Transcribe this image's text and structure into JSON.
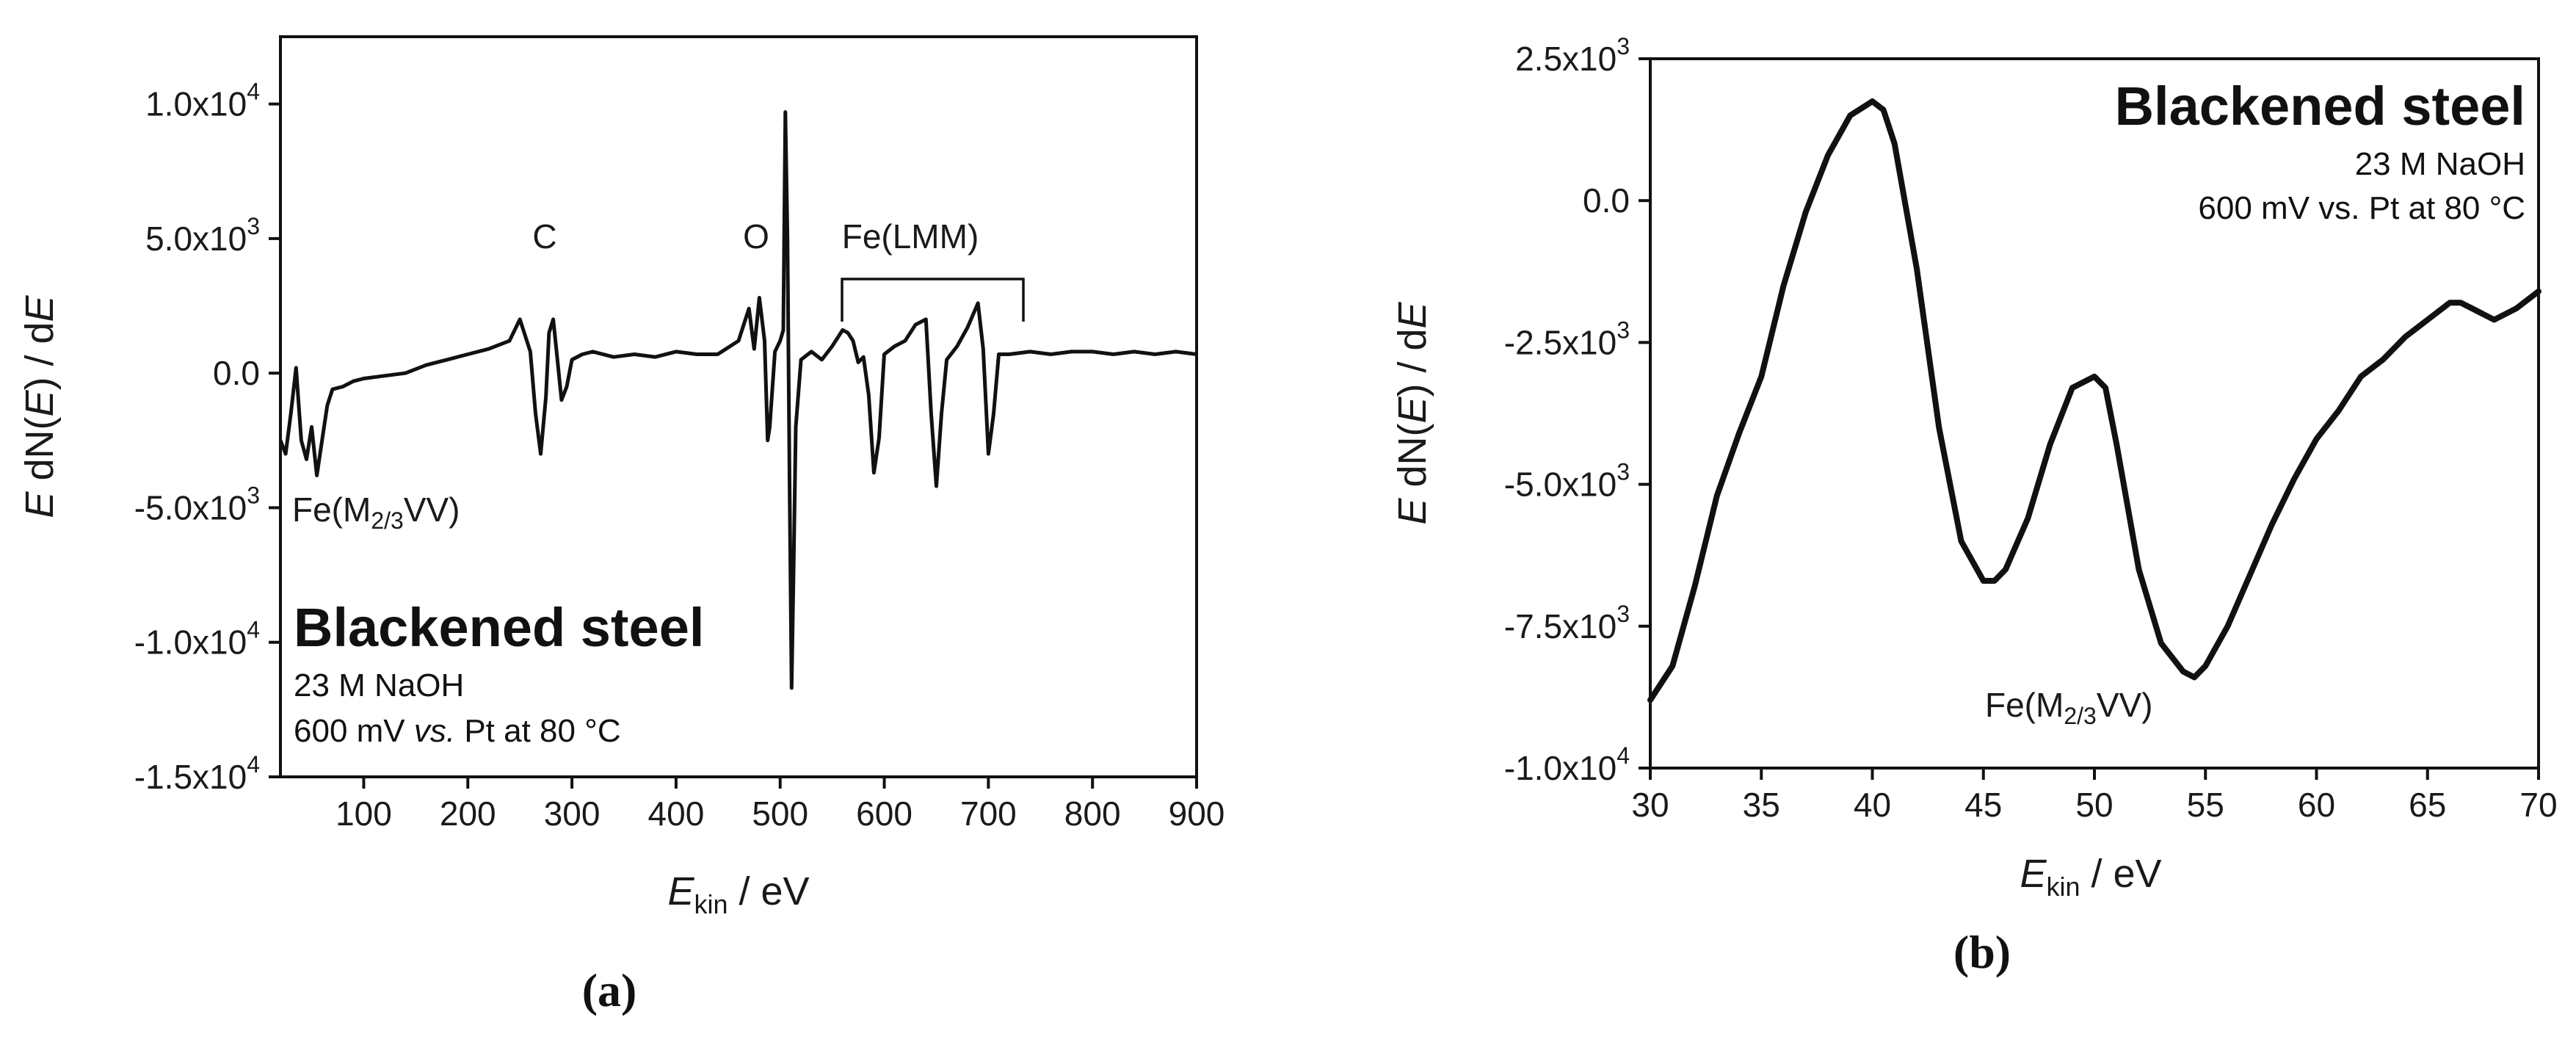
{
  "chart_data": [
    {
      "id": "a",
      "type": "line",
      "panel_label": "(a)",
      "title": "",
      "xlabel": {
        "main": "E",
        "sub": "kin",
        "unit": " / eV"
      },
      "ylabel": {
        "p1": "E",
        "p2": " dN(",
        "p3": "E",
        "p4": ") / d",
        "p5": "E"
      },
      "xlim": [
        20,
        900
      ],
      "ylim": [
        -15000,
        12500
      ],
      "xticks": [
        100,
        200,
        300,
        400,
        500,
        600,
        700,
        800,
        900
      ],
      "xtick_labels": [
        "100",
        "200",
        "300",
        "400",
        "500",
        "600",
        "700",
        "800",
        "900"
      ],
      "yticks": [
        {
          "value": 10000,
          "mant": "1.0x10",
          "exp": "4"
        },
        {
          "value": 5000,
          "mant": "5.0x10",
          "exp": "3"
        },
        {
          "value": 0,
          "mant": "0.0",
          "exp": ""
        },
        {
          "value": -5000,
          "mant": "-5.0x10",
          "exp": "3"
        },
        {
          "value": -10000,
          "mant": "-1.0x10",
          "exp": "4"
        },
        {
          "value": -15000,
          "mant": "-1.5x10",
          "exp": "4"
        }
      ],
      "annotations": {
        "C": "C",
        "O": "O",
        "FeLMM": "Fe(LMM)",
        "FeM_pre": "Fe(M",
        "FeM_sub": "2/3",
        "FeM_post": "VV)"
      },
      "inset_text": {
        "title": "Blackened steel",
        "line1": "23 M NaOH",
        "line2_pre": "600 mV ",
        "line2_it": "vs.",
        "line2_post": " Pt at 80 °C"
      },
      "series": [
        {
          "name": "Blackened steel",
          "x": [
            20,
            25,
            30,
            35,
            40,
            45,
            50,
            55,
            60,
            65,
            70,
            80,
            90,
            100,
            120,
            140,
            160,
            180,
            200,
            220,
            240,
            250,
            255,
            260,
            265,
            270,
            275,
            278,
            282,
            285,
            290,
            295,
            300,
            310,
            320,
            340,
            360,
            380,
            400,
            420,
            440,
            460,
            470,
            475,
            480,
            485,
            488,
            490,
            495,
            500,
            503,
            505,
            507,
            509,
            511,
            513,
            515,
            520,
            530,
            540,
            550,
            560,
            565,
            570,
            575,
            580,
            585,
            590,
            595,
            600,
            610,
            620,
            630,
            640,
            645,
            650,
            655,
            660,
            670,
            680,
            690,
            695,
            700,
            705,
            710,
            720,
            740,
            760,
            780,
            800,
            820,
            840,
            860,
            880,
            900
          ],
          "y": [
            -2500,
            -3000,
            -1500,
            200,
            -2500,
            -3200,
            -2000,
            -3800,
            -2500,
            -1200,
            -600,
            -500,
            -300,
            -200,
            -100,
            0,
            300,
            500,
            700,
            900,
            1200,
            2000,
            1400,
            800,
            -1500,
            -3000,
            -900,
            1500,
            2000,
            900,
            -1000,
            -500,
            500,
            700,
            800,
            600,
            700,
            600,
            800,
            700,
            700,
            1200,
            2400,
            900,
            2800,
            1200,
            -2500,
            -2000,
            800,
            1200,
            1600,
            9700,
            5000,
            -4000,
            -11700,
            -7000,
            -2000,
            500,
            800,
            500,
            1000,
            1600,
            1500,
            1200,
            400,
            600,
            -800,
            -3700,
            -2400,
            700,
            1000,
            1200,
            1800,
            2000,
            -1500,
            -4200,
            -1500,
            500,
            1000,
            1700,
            2600,
            900,
            -3000,
            -1500,
            700,
            700,
            800,
            700,
            800,
            800,
            700,
            800,
            700,
            800,
            700
          ]
        }
      ]
    },
    {
      "id": "b",
      "type": "line",
      "panel_label": "(b)",
      "title": "",
      "xlabel": {
        "main": "E",
        "sub": "kin",
        "unit": " / eV"
      },
      "ylabel": {
        "p1": "E",
        "p2": " dN(",
        "p3": "E",
        "p4": ") / d",
        "p5": "E"
      },
      "xlim": [
        30,
        70
      ],
      "ylim": [
        -10000,
        2500
      ],
      "xticks": [
        30,
        35,
        40,
        45,
        50,
        55,
        60,
        65,
        70
      ],
      "xtick_labels": [
        "30",
        "35",
        "40",
        "45",
        "50",
        "55",
        "60",
        "65",
        "70"
      ],
      "yticks": [
        {
          "value": 2500,
          "mant": "2.5x10",
          "exp": "3"
        },
        {
          "value": 0,
          "mant": "0.0",
          "exp": ""
        },
        {
          "value": -2500,
          "mant": "-2.5x10",
          "exp": "3"
        },
        {
          "value": -5000,
          "mant": "-5.0x10",
          "exp": "3"
        },
        {
          "value": -7500,
          "mant": "-7.5x10",
          "exp": "3"
        },
        {
          "value": -10000,
          "mant": "-1.0x10",
          "exp": "4"
        }
      ],
      "annotations": {
        "FeM_pre": "Fe(M",
        "FeM_sub": "2/3",
        "FeM_post": "VV)"
      },
      "inset_text": {
        "title": "Blackened steel",
        "line1": "23 M NaOH",
        "line2": "600 mV vs. Pt at 80 °C"
      },
      "series": [
        {
          "name": "Blackened steel",
          "x": [
            30,
            31,
            32,
            33,
            34,
            35,
            36,
            37,
            38,
            39,
            40,
            40.5,
            41,
            42,
            43,
            44,
            45,
            45.5,
            46,
            47,
            48,
            49,
            50,
            50.5,
            51,
            52,
            53,
            54,
            54.5,
            55,
            56,
            57,
            58,
            59,
            60,
            61,
            62,
            63,
            64,
            65,
            66,
            66.5,
            67,
            68,
            69,
            70
          ],
          "y": [
            -8800,
            -8200,
            -6800,
            -5200,
            -4100,
            -3100,
            -1500,
            -200,
            800,
            1500,
            1750,
            1600,
            1000,
            -1200,
            -4000,
            -6000,
            -6700,
            -6700,
            -6500,
            -5600,
            -4300,
            -3300,
            -3100,
            -3300,
            -4300,
            -6500,
            -7800,
            -8300,
            -8400,
            -8200,
            -7500,
            -6600,
            -5700,
            -4900,
            -4200,
            -3700,
            -3100,
            -2800,
            -2400,
            -2100,
            -1800,
            -1800,
            -1900,
            -2100,
            -1900,
            -1600
          ]
        }
      ]
    }
  ]
}
